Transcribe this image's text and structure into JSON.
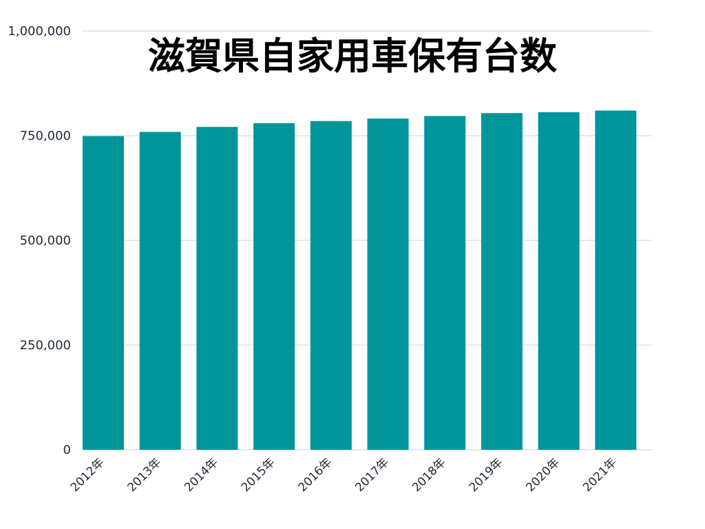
{
  "chart_data": {
    "type": "bar",
    "title": "滋賀県自家用車保有台数",
    "xlabel": "",
    "ylabel": "",
    "categories": [
      "2012年",
      "2013年",
      "2014年",
      "2015年",
      "2016年",
      "2017年",
      "2018年",
      "2019年",
      "2020年",
      "2021年"
    ],
    "values": [
      749000,
      759000,
      771000,
      780000,
      785000,
      791000,
      797000,
      804000,
      806000,
      810000
    ],
    "ylim": [
      0,
      1000000
    ],
    "yticks": [
      0,
      250000,
      500000,
      750000,
      1000000
    ],
    "ytick_labels": [
      "0",
      "250,000",
      "500,000",
      "750,000",
      "1,000,000"
    ],
    "bar_color": "#00959a",
    "grid": true,
    "legend": "none"
  }
}
